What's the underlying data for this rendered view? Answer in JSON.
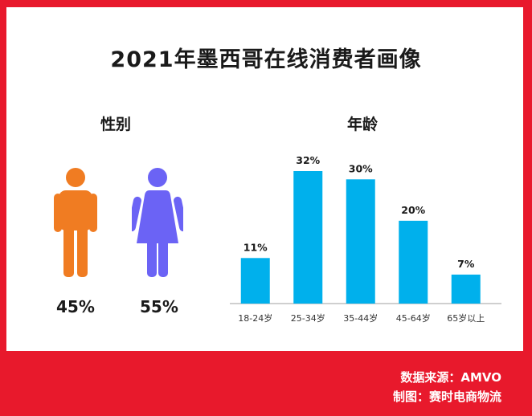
{
  "title": "2021年墨西哥在线消费者画像",
  "gender": {
    "heading": "性别",
    "male": {
      "value": "45%",
      "color": "#f07c22"
    },
    "female": {
      "value": "55%",
      "color": "#6b63f5"
    }
  },
  "chart_data": {
    "type": "bar",
    "title": "年龄",
    "categories": [
      "18-24岁",
      "25-34岁",
      "35-44岁",
      "45-64岁",
      "65岁以上"
    ],
    "values": [
      11,
      32,
      30,
      20,
      7
    ],
    "labels": [
      "11%",
      "32%",
      "30%",
      "20%",
      "7%"
    ],
    "bar_color": "#00b0ec",
    "ylim": [
      0,
      32
    ],
    "grid": false
  },
  "footer": {
    "source": "数据来源：AMVO",
    "maker": "制图：赛时电商物流"
  },
  "colors": {
    "frame": "#e8192c",
    "background": "#ffffff",
    "text": "#1a1a1a"
  }
}
